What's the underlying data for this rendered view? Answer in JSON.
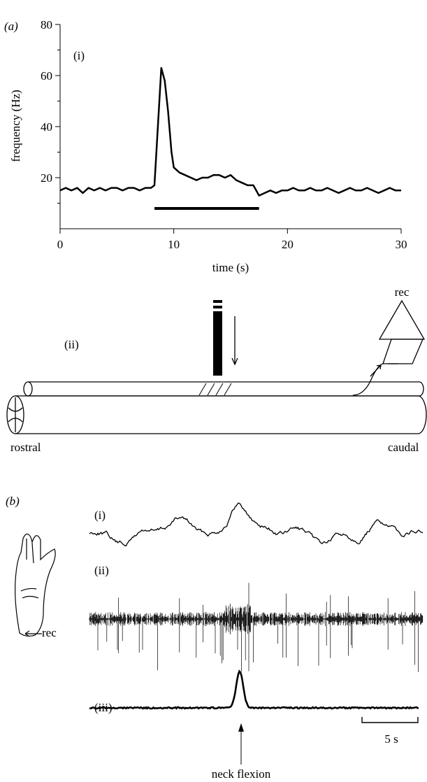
{
  "panel_a": {
    "label": "(a)"
  },
  "chart_data": {
    "type": "line",
    "panel_label": "(i)",
    "y_label": "frequency (Hz)",
    "x_label": "time (s)",
    "x": [
      0,
      0.5,
      1,
      1.5,
      2,
      2.5,
      3,
      3.5,
      4,
      4.5,
      5,
      5.5,
      6,
      6.5,
      7,
      7.5,
      8,
      8.3,
      8.6,
      8.9,
      9.2,
      9.5,
      9.8,
      10,
      10.5,
      11,
      11.5,
      12,
      12.5,
      13,
      13.5,
      14,
      14.5,
      15,
      15.5,
      16,
      16.5,
      17,
      17.5,
      18,
      18.5,
      19,
      19.5,
      20,
      20.5,
      21,
      21.5,
      22,
      22.5,
      23,
      23.5,
      24,
      24.5,
      25,
      25.5,
      26,
      26.5,
      27,
      27.5,
      28,
      28.5,
      29,
      29.5,
      30
    ],
    "series": [
      {
        "color": "#000000",
        "values": [
          15,
          16,
          15,
          16,
          14,
          16,
          15,
          16,
          15,
          16,
          16,
          15,
          16,
          16,
          15,
          16,
          16,
          17,
          40,
          63,
          58,
          46,
          30,
          24,
          22,
          21,
          20,
          19,
          20,
          20,
          21,
          21,
          20,
          21,
          19,
          18,
          17,
          17,
          13,
          14,
          15,
          14,
          15,
          15,
          16,
          15,
          15,
          16,
          15,
          15,
          16,
          15,
          14,
          15,
          16,
          15,
          15,
          16,
          15,
          14,
          15,
          16,
          15,
          15
        ]
      }
    ],
    "stimulus_interval": [
      8.3,
      17.5
    ],
    "xlim": [
      0,
      30
    ],
    "xticks": [
      0,
      10,
      20,
      30
    ],
    "ylim": [
      0,
      80
    ],
    "yticks": [
      20,
      40,
      60,
      80
    ],
    "yticks_minor": [
      10,
      30,
      50,
      70
    ]
  },
  "diagram": {
    "label": "(ii)",
    "rec": "rec",
    "rostral": "rostral",
    "caudal": "caudal"
  },
  "panel_b": {
    "label": "(b)",
    "trace_labels": [
      "(i)",
      "(ii)",
      "(iii)"
    ],
    "rec": "rec",
    "scale_bar": "5 s",
    "event": "neck flexion"
  }
}
